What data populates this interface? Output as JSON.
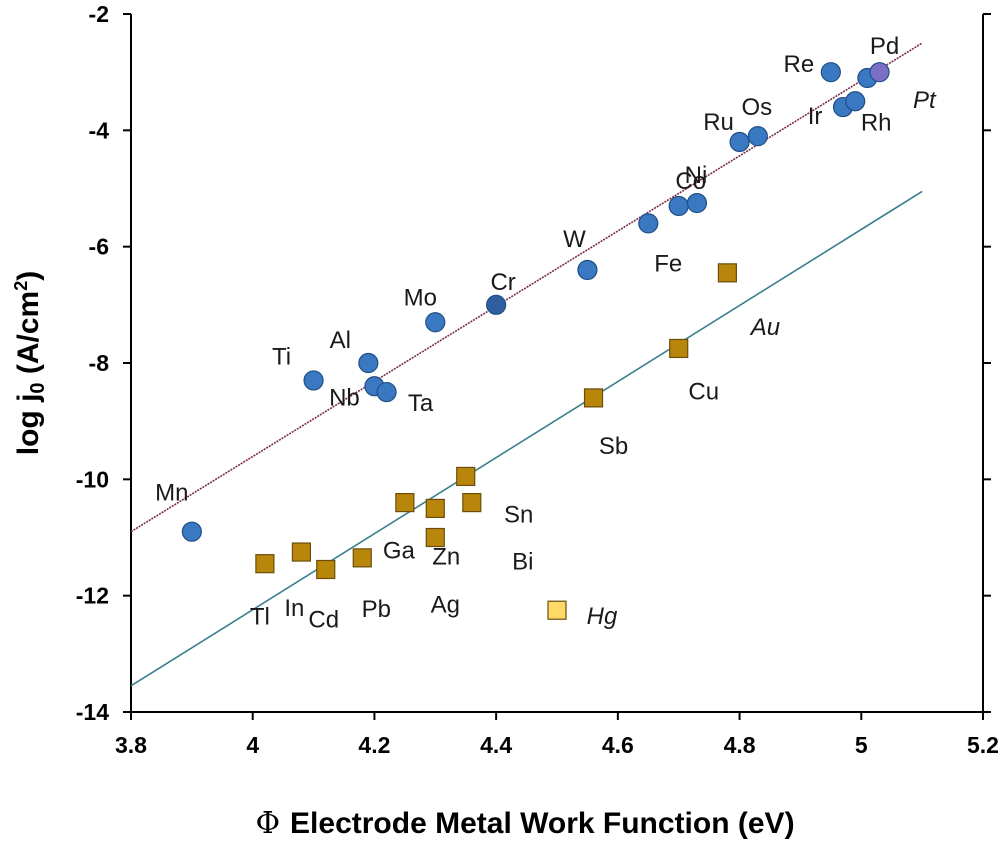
{
  "chart_data": {
    "type": "scatter",
    "xlabel_symbol": "Φ",
    "xlabel": "Electrode Metal Work Function (eV)",
    "ylabel_main": "log j",
    "ylabel_sub": "0",
    "ylabel_tail": " (A/cm",
    "ylabel_sup": "2",
    "ylabel_end": ")",
    "xlim": [
      3.8,
      5.2
    ],
    "ylim": [
      -14,
      -2
    ],
    "xticks": [
      "3.8",
      "4",
      "4.2",
      "4.4",
      "4.6",
      "4.8",
      "5",
      "5.2"
    ],
    "xtick_values": [
      3.8,
      4.0,
      4.2,
      4.4,
      4.6,
      4.8,
      5.0,
      5.2
    ],
    "yticks": [
      "-2",
      "-4",
      "-6",
      "-8",
      "-10",
      "-12",
      "-14"
    ],
    "ytick_values": [
      -2,
      -4,
      -6,
      -8,
      -10,
      -12,
      -14
    ],
    "grid": false,
    "series": [
      {
        "marker": "circle",
        "color": "#3a78c2",
        "stroke": "#1f4e86",
        "points": [
          {
            "label": "Mn",
            "x": 3.9,
            "y": -10.9
          },
          {
            "label": "Ti",
            "x": 4.1,
            "y": -8.3
          },
          {
            "label": "Al",
            "x": 4.19,
            "y": -8.0
          },
          {
            "label": "Nb",
            "x": 4.2,
            "y": -8.4
          },
          {
            "label": "Ta",
            "x": 4.22,
            "y": -8.5
          },
          {
            "label": "Mo",
            "x": 4.3,
            "y": -7.3
          },
          {
            "label": "Cr",
            "x": 4.4,
            "y": -7.0,
            "color": "#2f5f9e"
          },
          {
            "label": "W",
            "x": 4.55,
            "y": -6.4
          },
          {
            "label": "Fe",
            "x": 4.65,
            "y": -5.6
          },
          {
            "label": "Co",
            "x": 4.7,
            "y": -5.3
          },
          {
            "label": "Ni",
            "x": 4.73,
            "y": -5.25
          },
          {
            "label": "Ru",
            "x": 4.8,
            "y": -4.2
          },
          {
            "label": "Os",
            "x": 4.83,
            "y": -4.1
          },
          {
            "label": "Re",
            "x": 4.95,
            "y": -3.0
          },
          {
            "label": "Ir",
            "x": 4.97,
            "y": -3.6
          },
          {
            "label": "Rh",
            "x": 4.99,
            "y": -3.5
          },
          {
            "label": "Pt",
            "x": 5.01,
            "y": -3.1,
            "italic": true
          },
          {
            "label": "Pd",
            "x": 5.03,
            "y": -3.0,
            "color": "#7a6fc4"
          }
        ]
      },
      {
        "marker": "square",
        "color": "#b8860b",
        "stroke": "#6b4e0a",
        "points": [
          {
            "label": "Tl",
            "x": 4.02,
            "y": -11.45
          },
          {
            "label": "In",
            "x": 4.08,
            "y": -11.25
          },
          {
            "label": "Cd",
            "x": 4.12,
            "y": -11.55
          },
          {
            "label": "Pb",
            "x": 4.18,
            "y": -11.35
          },
          {
            "label": "Ga",
            "x": 4.25,
            "y": -10.4
          },
          {
            "label": "Zn",
            "x": 4.3,
            "y": -10.5
          },
          {
            "label": "Ag",
            "x": 4.3,
            "y": -11.0
          },
          {
            "label": "Sn",
            "x": 4.35,
            "y": -9.95
          },
          {
            "label": "Bi",
            "x": 4.36,
            "y": -10.4
          },
          {
            "label": "Hg",
            "x": 4.5,
            "y": -12.25,
            "italic": true,
            "color": "#ffd966"
          },
          {
            "label": "Sb",
            "x": 4.56,
            "y": -8.6
          },
          {
            "label": "Cu",
            "x": 4.7,
            "y": -7.75
          },
          {
            "label": "Au",
            "x": 4.78,
            "y": -6.45,
            "italic": true
          }
        ]
      }
    ],
    "trendlines": [
      {
        "color": "#7b2a4e",
        "x": [
          3.8,
          5.1
        ],
        "y": [
          -10.9,
          -2.5
        ],
        "style": "dotted"
      },
      {
        "color": "#3a7f8c",
        "x": [
          3.8,
          5.1
        ],
        "y": [
          -13.55,
          -5.05
        ],
        "style": "solid"
      }
    ]
  }
}
